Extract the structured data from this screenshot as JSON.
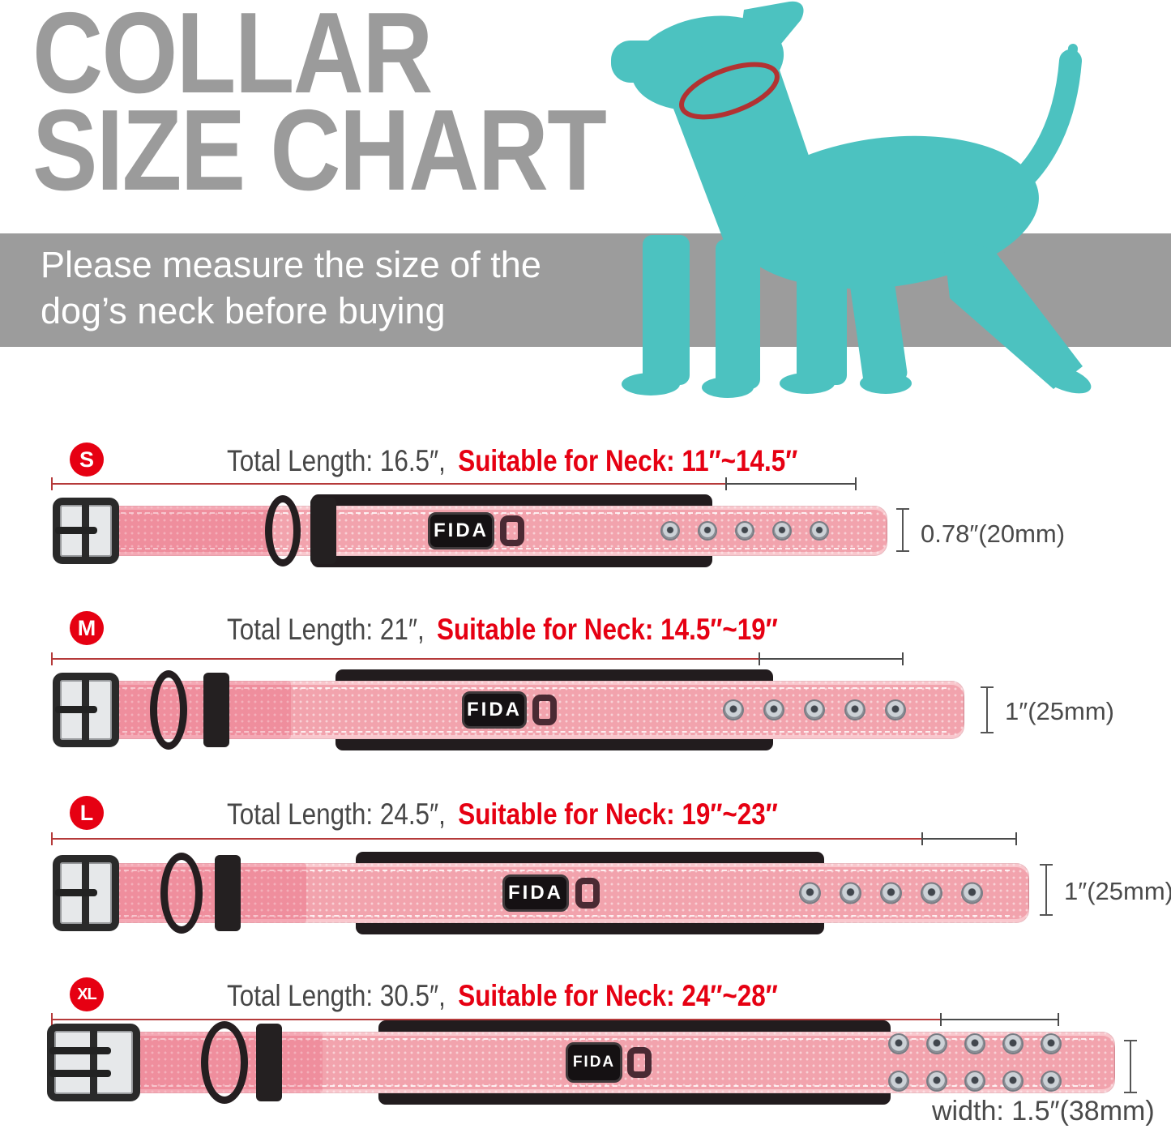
{
  "title": {
    "line1": "COLLAR",
    "line2": "SIZE CHART"
  },
  "banner": {
    "line1": "Please measure the size of the",
    "line2": "dog’s neck before buying"
  },
  "brand": {
    "label": "FIDA"
  },
  "colors": {
    "accent_red": "#e60012",
    "measure_line_red": "#b53a3a",
    "dog_teal": "#4cc2c0",
    "banner_gray": "#9c9c9c",
    "title_gray": "#9b9b9b",
    "collar_pink": "#f2a3ad"
  },
  "sizes": [
    {
      "badge": "S",
      "total_length": "Total Length: 16.5″,",
      "neck_range": "Suitable for Neck: 11″~14.5″",
      "width_label": "0.78″(20mm)"
    },
    {
      "badge": "M",
      "total_length": "Total Length: 21″,",
      "neck_range": "Suitable for Neck: 14.5″~19″",
      "width_label": "1″(25mm)"
    },
    {
      "badge": "L",
      "total_length": "Total Length: 24.5″,",
      "neck_range": "Suitable for Neck: 19″~23″",
      "width_label": "1″(25mm)"
    },
    {
      "badge": "XL",
      "total_length": "Total Length: 30.5″,",
      "neck_range": "Suitable for Neck: 24″~28″",
      "width_label": "width: 1.5″(38mm)"
    }
  ]
}
